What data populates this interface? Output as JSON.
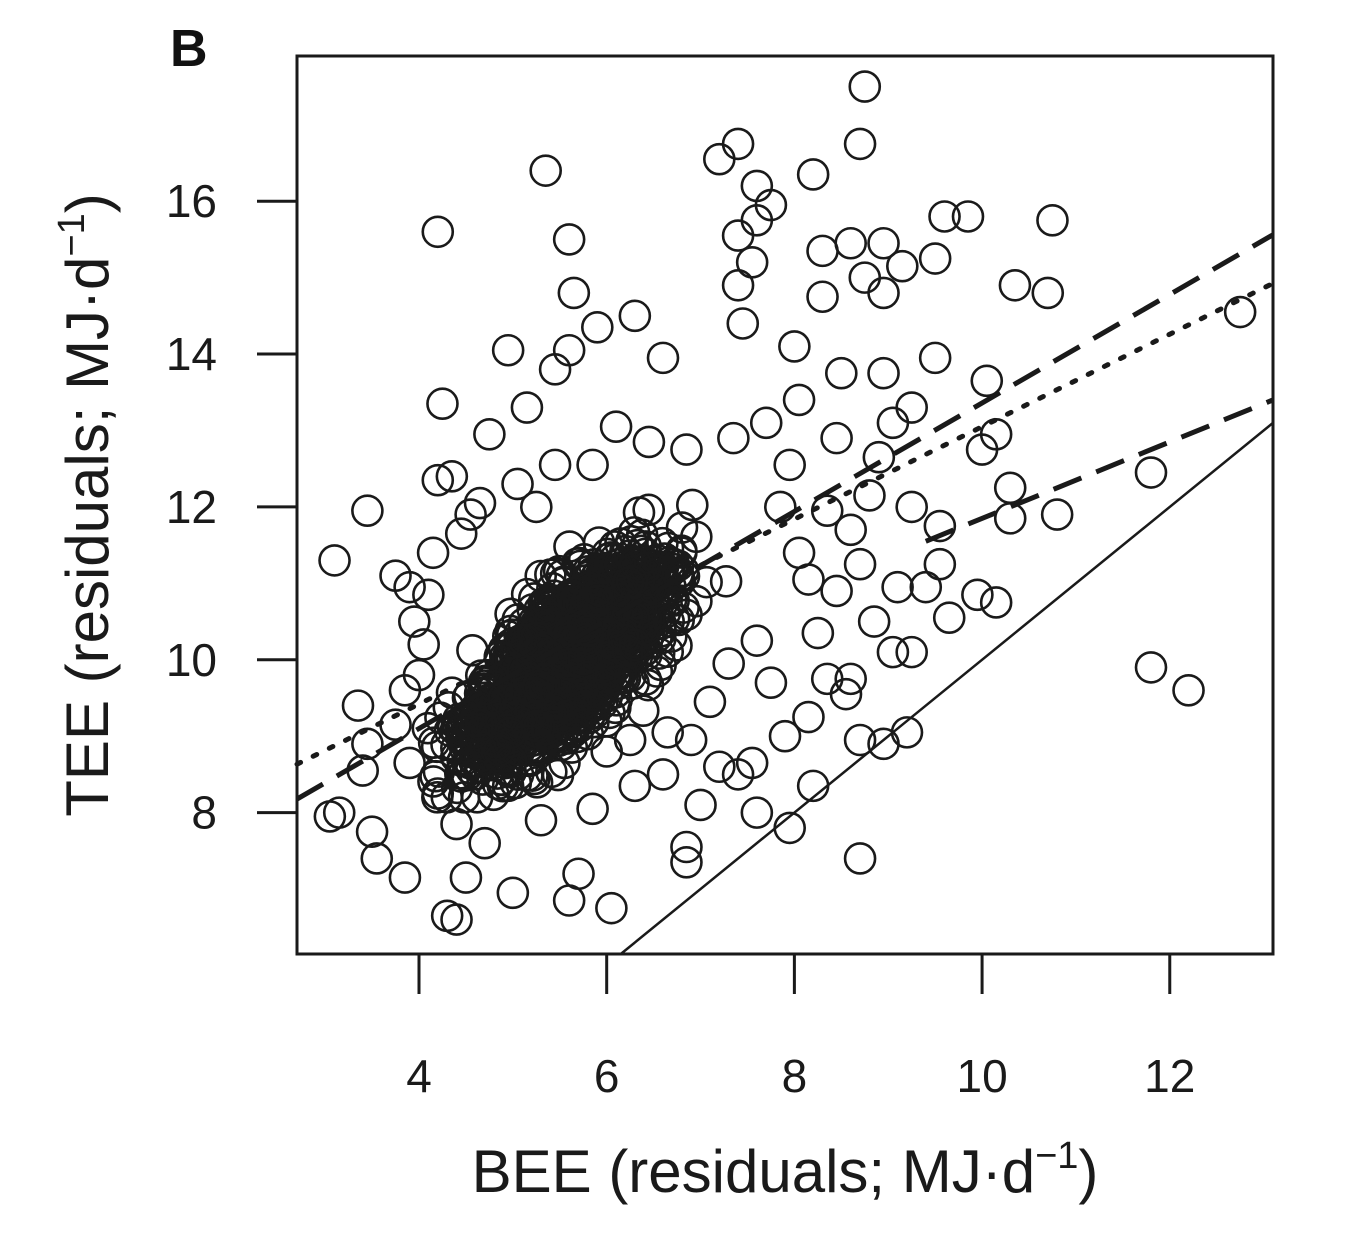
{
  "panel_label": "B",
  "chart_data": {
    "type": "scatter",
    "xlabel": {
      "main": "BEE (residuals; MJ·d",
      "sup": "−1",
      "close": ")"
    },
    "ylabel": {
      "main": "TEE (residuals; MJ·d",
      "sup": "−1",
      "close": ")"
    },
    "xlim": [
      2.7,
      13.1
    ],
    "ylim": [
      6.15,
      17.9
    ],
    "xticks": [
      4,
      6,
      8,
      10,
      12
    ],
    "xtick_labels": [
      "4",
      "6",
      "8",
      "10",
      "12"
    ],
    "yticks": [
      8,
      10,
      12,
      14,
      16
    ],
    "ytick_labels": [
      "8",
      "10",
      "12",
      "14",
      "16"
    ],
    "grid": false,
    "marker": "open-circle",
    "colors": {
      "points": "#1a1a1a",
      "lines": "#1a1a1a",
      "frame": "#1a1a1a"
    },
    "dense_cloud": {
      "x_range": [
        4.0,
        7.8
      ],
      "y_range": [
        8.2,
        12.6
      ],
      "approx_center": [
        5.6,
        10.0
      ]
    },
    "points": [
      [
        8.75,
        17.5
      ],
      [
        8.7,
        16.75
      ],
      [
        7.4,
        16.75
      ],
      [
        7.2,
        16.55
      ],
      [
        5.35,
        16.4
      ],
      [
        8.2,
        16.35
      ],
      [
        7.6,
        16.2
      ],
      [
        7.75,
        15.95
      ],
      [
        7.6,
        15.75
      ],
      [
        4.2,
        15.6
      ],
      [
        5.6,
        15.5
      ],
      [
        7.4,
        15.55
      ],
      [
        8.6,
        15.45
      ],
      [
        8.95,
        15.45
      ],
      [
        9.6,
        15.8
      ],
      [
        9.85,
        15.8
      ],
      [
        10.75,
        15.75
      ],
      [
        9.5,
        15.25
      ],
      [
        7.55,
        15.2
      ],
      [
        8.3,
        15.35
      ],
      [
        8.75,
        15.0
      ],
      [
        9.15,
        15.15
      ],
      [
        10.35,
        14.9
      ],
      [
        10.7,
        14.8
      ],
      [
        7.4,
        14.9
      ],
      [
        5.65,
        14.8
      ],
      [
        8.95,
        14.8
      ],
      [
        8.3,
        14.75
      ],
      [
        12.75,
        14.55
      ],
      [
        6.3,
        14.5
      ],
      [
        5.9,
        14.35
      ],
      [
        4.95,
        14.05
      ],
      [
        5.6,
        14.05
      ],
      [
        9.5,
        13.95
      ],
      [
        8.5,
        13.75
      ],
      [
        8.95,
        13.75
      ],
      [
        10.05,
        13.65
      ],
      [
        5.45,
        13.8
      ],
      [
        4.25,
        13.35
      ],
      [
        9.25,
        13.3
      ],
      [
        5.15,
        13.3
      ],
      [
        9.05,
        13.1
      ],
      [
        10.15,
        12.95
      ],
      [
        10.0,
        12.75
      ],
      [
        8.9,
        12.65
      ],
      [
        11.8,
        12.45
      ],
      [
        4.75,
        12.95
      ],
      [
        4.35,
        12.4
      ],
      [
        4.2,
        12.35
      ],
      [
        10.3,
        12.25
      ],
      [
        9.25,
        12.0
      ],
      [
        10.3,
        11.85
      ],
      [
        10.8,
        11.9
      ],
      [
        9.55,
        11.75
      ],
      [
        3.45,
        11.95
      ],
      [
        3.1,
        11.3
      ],
      [
        9.55,
        11.25
      ],
      [
        9.4,
        10.95
      ],
      [
        9.1,
        10.95
      ],
      [
        9.95,
        10.85
      ],
      [
        10.15,
        10.75
      ],
      [
        9.65,
        10.55
      ],
      [
        8.85,
        10.5
      ],
      [
        9.25,
        10.1
      ],
      [
        9.05,
        10.1
      ],
      [
        8.6,
        9.75
      ],
      [
        8.55,
        9.55
      ],
      [
        11.8,
        9.9
      ],
      [
        12.2,
        9.6
      ],
      [
        9.2,
        9.05
      ],
      [
        8.95,
        8.9
      ],
      [
        8.7,
        8.95
      ],
      [
        8.2,
        8.35
      ],
      [
        7.95,
        7.8
      ],
      [
        8.7,
        7.4
      ],
      [
        7.6,
        8.0
      ],
      [
        6.05,
        6.75
      ],
      [
        4.3,
        6.65
      ],
      [
        4.4,
        6.6
      ],
      [
        3.35,
        9.4
      ],
      [
        3.45,
        8.9
      ],
      [
        3.4,
        8.55
      ],
      [
        3.05,
        7.95
      ],
      [
        3.15,
        8.0
      ],
      [
        3.5,
        7.75
      ],
      [
        3.55,
        7.4
      ],
      [
        3.85,
        7.15
      ],
      [
        4.5,
        7.15
      ],
      [
        5.0,
        6.95
      ],
      [
        5.6,
        6.85
      ],
      [
        5.7,
        7.2
      ],
      [
        6.85,
        7.35
      ],
      [
        6.85,
        7.55
      ],
      [
        7.0,
        8.1
      ],
      [
        7.4,
        8.5
      ],
      [
        6.9,
        8.95
      ],
      [
        8.05,
        11.4
      ],
      [
        8.35,
        11.95
      ],
      [
        8.45,
        12.9
      ],
      [
        8.05,
        13.4
      ],
      [
        7.7,
        13.1
      ],
      [
        8.0,
        14.1
      ],
      [
        7.45,
        14.4
      ],
      [
        6.6,
        13.95
      ],
      [
        6.1,
        13.05
      ],
      [
        3.75,
        11.1
      ],
      [
        3.9,
        10.95
      ],
      [
        3.95,
        10.5
      ],
      [
        3.85,
        9.6
      ],
      [
        3.75,
        9.15
      ],
      [
        3.9,
        8.65
      ],
      [
        4.2,
        8.25
      ],
      [
        4.4,
        7.85
      ],
      [
        4.7,
        7.6
      ],
      [
        5.3,
        7.9
      ],
      [
        5.85,
        8.05
      ],
      [
        6.3,
        8.35
      ],
      [
        6.6,
        8.5
      ],
      [
        7.2,
        8.6
      ],
      [
        7.55,
        8.65
      ],
      [
        7.9,
        9.0
      ],
      [
        8.15,
        9.25
      ],
      [
        8.35,
        9.75
      ],
      [
        8.25,
        10.35
      ],
      [
        8.45,
        10.9
      ],
      [
        8.15,
        11.05
      ],
      [
        8.7,
        11.25
      ],
      [
        8.6,
        11.7
      ],
      [
        8.8,
        12.15
      ],
      [
        7.85,
        12.0
      ],
      [
        7.95,
        12.55
      ],
      [
        7.35,
        12.9
      ],
      [
        6.85,
        12.75
      ],
      [
        6.45,
        12.85
      ],
      [
        5.85,
        12.55
      ],
      [
        5.45,
        12.55
      ],
      [
        5.05,
        12.3
      ],
      [
        4.65,
        12.05
      ],
      [
        4.45,
        11.65
      ],
      [
        4.15,
        11.4
      ],
      [
        4.1,
        10.85
      ],
      [
        4.05,
        10.2
      ],
      [
        4.0,
        9.8
      ],
      [
        4.55,
        11.9
      ],
      [
        5.25,
        12.0
      ],
      [
        7.6,
        10.25
      ],
      [
        7.75,
        9.7
      ],
      [
        7.1,
        9.45
      ],
      [
        7.3,
        9.95
      ],
      [
        4.6,
        8.5
      ],
      [
        4.95,
        8.35
      ],
      [
        5.55,
        8.65
      ],
      [
        6.0,
        8.8
      ],
      [
        6.25,
        8.95
      ],
      [
        6.65,
        9.05
      ]
    ],
    "reference_lines": [
      {
        "style": "solid",
        "slope": 1.0,
        "intercept": 0.0,
        "x_range": [
          6.15,
          13.1
        ]
      },
      {
        "style": "dashed",
        "slope": 0.71,
        "intercept": 6.26,
        "x_range": [
          2.7,
          13.1
        ]
      },
      {
        "style": "dotted",
        "slope": 0.605,
        "intercept": 7.0,
        "x_range": [
          2.7,
          13.1
        ]
      },
      {
        "style": "dashed",
        "slope": 0.5,
        "intercept": 6.85,
        "x_range": [
          9.4,
          13.1
        ]
      }
    ]
  }
}
